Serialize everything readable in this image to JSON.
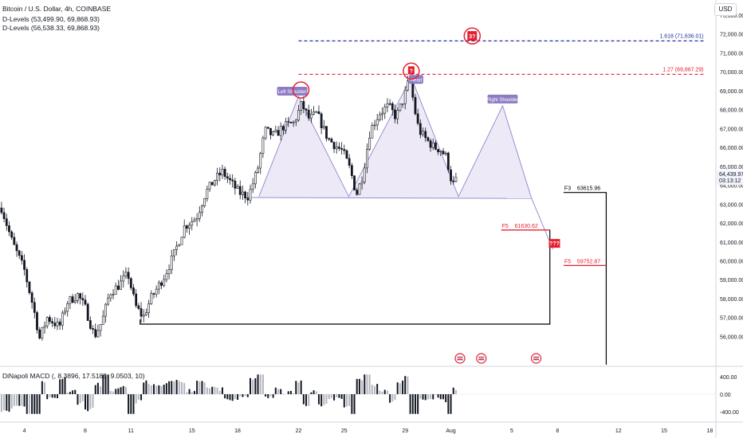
{
  "header": {
    "symbol": "Bitcoin / U.S. Dollar, 4h, COINBASE",
    "indicator1": "D-Levels (53,499.90, 69,868.93)",
    "indicator2": "D-Levels (56,538.33, 69,868.93)",
    "currency_button": "USD"
  },
  "macd_label": "DiNapoli MACD (, 8.3896, 17.5185, 9.0503, 10)",
  "colors": {
    "up": "#131722",
    "down": "#131722",
    "pattern_line": "#9c8fd1",
    "pattern_fill": "#ede9f7",
    "red": "#e4202f",
    "navy": "#22309a",
    "label_purple": "#8e7cc3",
    "black": "#000000"
  },
  "chart_data": {
    "type": "candlestick",
    "title": "Bitcoin / U.S. Dollar, 4h, COINBASE",
    "ylim": [
      54500,
      73800
    ],
    "y_ticks": [
      "73,000.00",
      "72,000.00",
      "71,000.00",
      "70,000.00",
      "69,000.00",
      "68,000.00",
      "67,000.00",
      "66,000.00",
      "65,000.00",
      "64,000.00",
      "63,000.00",
      "62,000.00",
      "61,000.00",
      "60,000.00",
      "59,000.00",
      "58,000.00",
      "57,000.00",
      "56,000.00"
    ],
    "y_tick_values": [
      73000,
      72000,
      71000,
      70000,
      69000,
      68000,
      67000,
      66000,
      65000,
      64000,
      63000,
      62000,
      61000,
      60000,
      59000,
      58000,
      57000,
      56000
    ],
    "x_ticks": [
      {
        "label": "4",
        "day": 4
      },
      {
        "label": "8",
        "day": 8
      },
      {
        "label": "11",
        "day": 11
      },
      {
        "label": "15",
        "day": 15
      },
      {
        "label": "18",
        "day": 18
      },
      {
        "label": "22",
        "day": 22
      },
      {
        "label": "25",
        "day": 25
      },
      {
        "label": "29",
        "day": 29
      },
      {
        "label": "Aug",
        "day": 32
      },
      {
        "label": "5",
        "day": 36
      },
      {
        "label": "8",
        "day": 39
      },
      {
        "label": "12",
        "day": 43
      },
      {
        "label": "15",
        "day": 46
      },
      {
        "label": "18",
        "day": 49
      }
    ],
    "day_range": [
      2.4,
      49.4
    ],
    "current_price": "64,439.97",
    "countdown": "03:13:12",
    "price_path": [
      [
        2.5,
        62800
      ],
      [
        3.2,
        61000
      ],
      [
        4.0,
        59500
      ],
      [
        4.6,
        57500
      ],
      [
        5.0,
        55900
      ],
      [
        5.5,
        57000
      ],
      [
        6.3,
        56500
      ],
      [
        6.8,
        57800
      ],
      [
        7.5,
        58200
      ],
      [
        8.0,
        57500
      ],
      [
        8.6,
        56000
      ],
      [
        9.1,
        56800
      ],
      [
        9.6,
        58300
      ],
      [
        10.2,
        58700
      ],
      [
        10.8,
        59300
      ],
      [
        11.3,
        57600
      ],
      [
        11.8,
        57000
      ],
      [
        12.3,
        58000
      ],
      [
        13.2,
        59200
      ],
      [
        13.8,
        60300
      ],
      [
        14.5,
        61800
      ],
      [
        15.3,
        62300
      ],
      [
        15.9,
        63600
      ],
      [
        16.5,
        64300
      ],
      [
        17.0,
        64700
      ],
      [
        17.6,
        64100
      ],
      [
        18.1,
        63600
      ],
      [
        18.7,
        63400
      ],
      [
        19.3,
        64800
      ],
      [
        19.8,
        66900
      ],
      [
        20.4,
        66600
      ],
      [
        21.0,
        67100
      ],
      [
        21.7,
        67300
      ],
      [
        22.2,
        68300
      ],
      [
        22.7,
        67500
      ],
      [
        23.2,
        67800
      ],
      [
        23.9,
        66500
      ],
      [
        24.4,
        66100
      ],
      [
        24.9,
        65800
      ],
      [
        25.4,
        64800
      ],
      [
        25.8,
        63500
      ],
      [
        26.2,
        64500
      ],
      [
        26.7,
        66900
      ],
      [
        27.3,
        67800
      ],
      [
        27.9,
        68200
      ],
      [
        28.4,
        67600
      ],
      [
        28.9,
        68600
      ],
      [
        29.3,
        69700
      ],
      [
        29.6,
        68100
      ],
      [
        29.9,
        66900
      ],
      [
        30.4,
        66400
      ],
      [
        30.9,
        66000
      ],
      [
        31.3,
        65900
      ],
      [
        31.7,
        65500
      ],
      [
        32.1,
        64000
      ],
      [
        32.5,
        64400
      ]
    ],
    "macd_ylim": [
      -600,
      600
    ],
    "macd_ticks": [
      "400.00",
      "0.00",
      "-400.00"
    ],
    "macd_tick_values": [
      400,
      0,
      -400
    ],
    "head_and_shoulders": {
      "points": [
        [
          19.4,
          63400
        ],
        [
          22.0,
          68700
        ],
        [
          25.3,
          63400
        ],
        [
          29.4,
          69700
        ],
        [
          32.5,
          63400
        ],
        [
          35.4,
          68200
        ],
        [
          37.3,
          63300
        ]
      ],
      "neckline": [
        [
          18.6,
          63350
        ],
        [
          37.3,
          63300
        ]
      ],
      "projection": [
        [
          37.3,
          63300
        ],
        [
          38.7,
          60600
        ]
      ],
      "labels": {
        "left_shoulder": "Left Shoulder",
        "head": "Head",
        "right_shoulder": "Right Shoulder",
        "head_question": "?",
        "target_question": "???",
        "top_question": "3?"
      }
    },
    "levels": [
      {
        "label": "1.618 (71,636.01)",
        "price": 71636,
        "from_day": 22.0,
        "to_day": 48.7,
        "color": "#22309a"
      },
      {
        "label": "1.27 (69,867.29)",
        "price": 69867,
        "from_day": 22.0,
        "to_day": 48.7,
        "color": "#e4202f"
      }
    ],
    "boxes": [
      {
        "tag": "F5",
        "value": "61630.62",
        "price": 61630,
        "bottom": 56650,
        "from_day": 35.3,
        "to_day": 38.5,
        "left_day": 11.6,
        "color": "#e4202f"
      },
      {
        "tag": "F3",
        "value": "63615.96",
        "price": 63615,
        "bottom": 54500,
        "from_day": 39.4,
        "to_day": 42.2,
        "color": "#000000"
      },
      {
        "tag": "F5",
        "value": "59752.87",
        "price": 59752,
        "from_day": 39.4,
        "to_day": 42.2,
        "color": "#e4202f"
      }
    ],
    "event_markers_day": [
      32.6,
      34.0,
      37.6
    ]
  }
}
